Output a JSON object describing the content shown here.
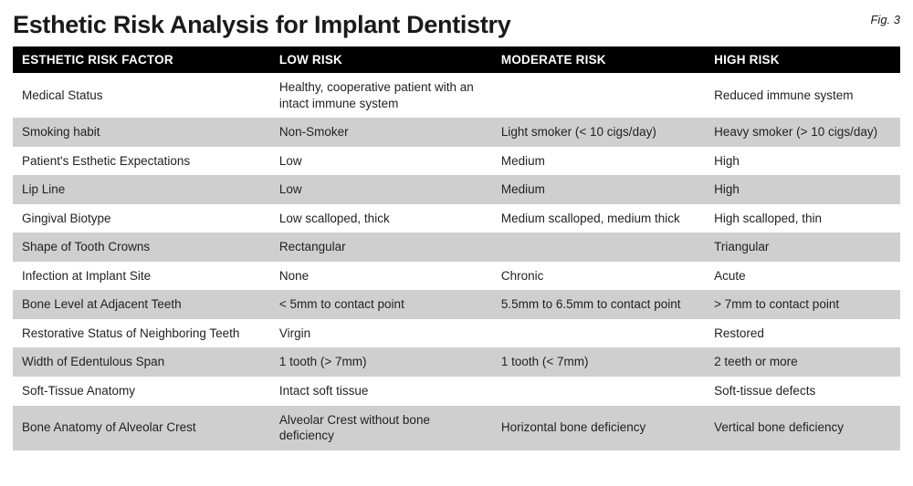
{
  "title": "Esthetic Risk Analysis for Implant Dentistry",
  "figure_label": "Fig. 3",
  "colors": {
    "header_bg": "#000000",
    "header_text": "#ffffff",
    "row_odd_bg": "#ffffff",
    "row_even_bg": "#cfcfcf",
    "text": "#1a1a1a",
    "page_bg": "#ffffff"
  },
  "typography": {
    "title_fontsize_pt": 20,
    "title_weight": 700,
    "header_fontsize_pt": 10,
    "header_weight": 700,
    "cell_fontsize_pt": 10,
    "font_family": "Helvetica Neue Condensed"
  },
  "table": {
    "type": "table",
    "column_widths_pct": [
      29,
      25,
      24,
      22
    ],
    "columns": [
      "ESTHETIC RISK FACTOR",
      "LOW RISK",
      "MODERATE RISK",
      "HIGH RISK"
    ],
    "rows": [
      {
        "factor": "Medical Status",
        "low": "Healthy, cooperative patient with an intact immune system",
        "moderate": "",
        "high": "Reduced immune system"
      },
      {
        "factor": "Smoking habit",
        "low": "Non-Smoker",
        "moderate": "Light smoker (< 10 cigs/day)",
        "high": "Heavy smoker (> 10 cigs/day)"
      },
      {
        "factor": "Patient's Esthetic Expectations",
        "low": "Low",
        "moderate": "Medium",
        "high": "High"
      },
      {
        "factor": "Lip Line",
        "low": "Low",
        "moderate": "Medium",
        "high": "High"
      },
      {
        "factor": "Gingival Biotype",
        "low": "Low scalloped, thick",
        "moderate": "Medium scalloped, medium thick",
        "high": "High scalloped, thin"
      },
      {
        "factor": "Shape of Tooth Crowns",
        "low": "Rectangular",
        "moderate": "",
        "high": "Triangular"
      },
      {
        "factor": "Infection at Implant Site",
        "low": "None",
        "moderate": "Chronic",
        "high": "Acute"
      },
      {
        "factor": "Bone Level at Adjacent Teeth",
        "low": "< 5mm to contact point",
        "moderate": "5.5mm to 6.5mm to contact point",
        "high": "> 7mm to contact point"
      },
      {
        "factor": "Restorative Status of Neighboring Teeth",
        "low": "Virgin",
        "moderate": "",
        "high": "Restored"
      },
      {
        "factor": "Width of Edentulous Span",
        "low": "1 tooth (> 7mm)",
        "moderate": "1 tooth (< 7mm)",
        "high": "2 teeth or more"
      },
      {
        "factor": "Soft-Tissue Anatomy",
        "low": "Intact soft tissue",
        "moderate": "",
        "high": "Soft-tissue defects"
      },
      {
        "factor": "Bone Anatomy of Alveolar Crest",
        "low": "Alveolar Crest without bone deficiency",
        "moderate": "Horizontal bone deficiency",
        "high": "Vertical bone deficiency"
      }
    ]
  }
}
